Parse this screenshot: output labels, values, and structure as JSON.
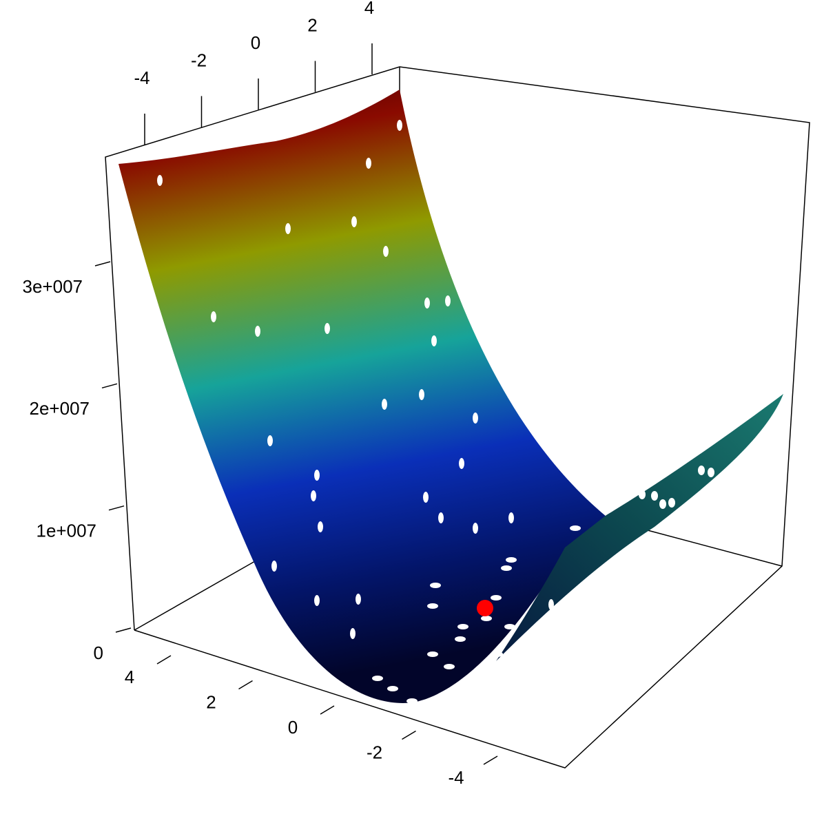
{
  "chart_data": {
    "type": "surface3d",
    "xticks": [
      -4,
      -2,
      0,
      2,
      4
    ],
    "yticks": [
      4,
      2,
      0,
      -2,
      -4
    ],
    "zticks": [
      0,
      {
        "value": 10000000,
        "label": "1e+007"
      },
      {
        "value": 20000000,
        "label": "2e+007"
      },
      {
        "value": 30000000,
        "label": "3e+007"
      }
    ]
  }
}
